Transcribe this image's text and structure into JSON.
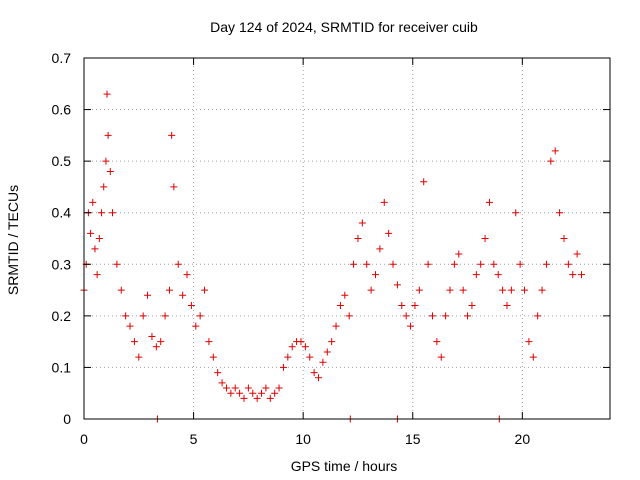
{
  "chart_data": {
    "type": "scatter",
    "title": "Day 124 of 2024, SRMTID for receiver cuib",
    "xlabel": "GPS time / hours",
    "ylabel": "SRMTID / TECUs",
    "xlim": [
      0,
      24
    ],
    "ylim": [
      0,
      0.7
    ],
    "x_ticks": [
      0,
      5,
      10,
      15,
      20
    ],
    "x_tick_labels": [
      "0",
      "5",
      "10",
      "15",
      "20"
    ],
    "y_ticks": [
      0,
      0.1,
      0.2,
      0.3,
      0.4,
      0.5,
      0.6,
      0.7
    ],
    "y_tick_labels": [
      "0",
      "0.1",
      "0.2",
      "0.3",
      "0.4",
      "0.5",
      "0.6",
      "0.7"
    ],
    "grid": true,
    "marker": "plus",
    "color": "#e00000",
    "series": [
      {
        "name": "SRMTID",
        "x": [
          0.0,
          0.1,
          0.2,
          0.3,
          0.4,
          0.5,
          0.6,
          0.7,
          0.8,
          0.9,
          1.0,
          1.05,
          1.1,
          1.2,
          1.3,
          1.5,
          1.7,
          1.9,
          2.1,
          2.3,
          2.5,
          2.7,
          2.9,
          3.1,
          3.3,
          3.5,
          3.7,
          3.9,
          4.0,
          4.1,
          4.3,
          4.5,
          4.7,
          4.9,
          5.1,
          5.3,
          5.5,
          5.7,
          5.9,
          6.1,
          6.3,
          6.5,
          6.7,
          6.9,
          7.1,
          7.3,
          7.5,
          7.7,
          7.9,
          8.1,
          8.3,
          8.5,
          8.7,
          8.9,
          9.1,
          9.3,
          9.5,
          9.7,
          9.9,
          10.1,
          10.3,
          10.5,
          10.7,
          10.9,
          11.1,
          11.3,
          11.5,
          11.7,
          11.9,
          12.1,
          12.3,
          12.5,
          12.7,
          12.9,
          13.1,
          13.3,
          13.5,
          13.7,
          13.9,
          14.1,
          14.3,
          14.5,
          14.7,
          14.9,
          15.1,
          15.3,
          15.5,
          15.7,
          15.9,
          16.1,
          16.3,
          16.5,
          16.7,
          16.9,
          17.1,
          17.3,
          17.5,
          17.7,
          17.9,
          18.1,
          18.3,
          18.5,
          18.7,
          18.9,
          19.1,
          19.3,
          19.5,
          19.7,
          19.9,
          20.1,
          20.3,
          20.5,
          20.7,
          20.9,
          21.1,
          21.3,
          21.5,
          21.7,
          21.9,
          22.1,
          22.3,
          22.5,
          22.7,
          3.35,
          12.15,
          14.3,
          18.95
        ],
        "y": [
          0.25,
          0.3,
          0.4,
          0.36,
          0.42,
          0.33,
          0.28,
          0.35,
          0.4,
          0.45,
          0.5,
          0.63,
          0.55,
          0.48,
          0.4,
          0.3,
          0.25,
          0.2,
          0.18,
          0.15,
          0.12,
          0.2,
          0.24,
          0.16,
          0.14,
          0.15,
          0.2,
          0.25,
          0.55,
          0.45,
          0.3,
          0.24,
          0.28,
          0.22,
          0.18,
          0.2,
          0.25,
          0.15,
          0.12,
          0.09,
          0.07,
          0.06,
          0.05,
          0.06,
          0.05,
          0.04,
          0.06,
          0.05,
          0.04,
          0.05,
          0.06,
          0.04,
          0.05,
          0.06,
          0.1,
          0.12,
          0.14,
          0.15,
          0.15,
          0.14,
          0.12,
          0.09,
          0.08,
          0.11,
          0.13,
          0.15,
          0.18,
          0.22,
          0.24,
          0.2,
          0.3,
          0.35,
          0.38,
          0.3,
          0.25,
          0.28,
          0.33,
          0.42,
          0.36,
          0.3,
          0.26,
          0.22,
          0.2,
          0.18,
          0.22,
          0.25,
          0.46,
          0.3,
          0.2,
          0.15,
          0.12,
          0.2,
          0.25,
          0.3,
          0.32,
          0.25,
          0.2,
          0.22,
          0.28,
          0.3,
          0.35,
          0.42,
          0.3,
          0.28,
          0.25,
          0.22,
          0.25,
          0.4,
          0.3,
          0.25,
          0.15,
          0.12,
          0.2,
          0.25,
          0.3,
          0.5,
          0.52,
          0.4,
          0.35,
          0.3,
          0.28,
          0.32,
          0.28,
          0.0,
          0.0,
          0.0,
          0.0
        ]
      }
    ]
  }
}
